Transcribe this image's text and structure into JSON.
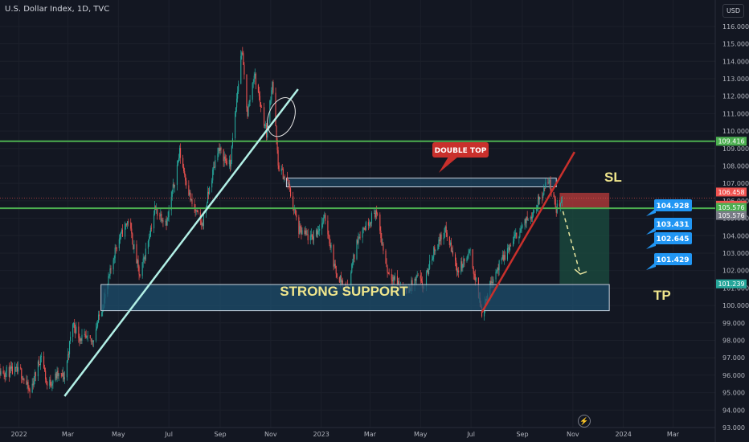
{
  "header": {
    "title": "U.S. Dollar Index, 1D, TVC",
    "currency": "USD"
  },
  "icons": {
    "flash": "lightning-icon"
  },
  "colors": {
    "bg": "#131722",
    "up": "#26a69a",
    "down": "#ef5350",
    "green_line": "#4caf50",
    "support_fill": "#1e4f6e",
    "trend": "#b2f0e6",
    "red_trend": "#c9302c",
    "label_blue": "#2196f3",
    "sl_red": "#b23a3a",
    "target_green": "#1b4d40"
  },
  "chart_data": {
    "type": "candlestick",
    "title": "U.S. Dollar Index, 1D, TVC",
    "xlabel": "",
    "ylabel": "USD",
    "ylim": [
      93,
      116.5
    ],
    "x_range": [
      "2022-01-01",
      "2024-03-31"
    ],
    "x_ticks": [
      {
        "label": "2022",
        "date": "2022-01-01"
      },
      {
        "label": "Mar",
        "date": "2022-03-01"
      },
      {
        "label": "May",
        "date": "2022-05-01"
      },
      {
        "label": "Jul",
        "date": "2022-07-01"
      },
      {
        "label": "Sep",
        "date": "2022-09-01"
      },
      {
        "label": "Nov",
        "date": "2022-11-01"
      },
      {
        "label": "2023",
        "date": "2023-01-01"
      },
      {
        "label": "Mar",
        "date": "2023-03-01"
      },
      {
        "label": "May",
        "date": "2023-05-01"
      },
      {
        "label": "Jul",
        "date": "2023-07-01"
      },
      {
        "label": "Sep",
        "date": "2023-09-01"
      },
      {
        "label": "Nov",
        "date": "2023-11-01"
      },
      {
        "label": "2024",
        "date": "2024-01-01"
      },
      {
        "label": "Mar",
        "date": "2024-03-01"
      }
    ],
    "y_ticks": [
      "93.000",
      "94.000",
      "95.000",
      "96.000",
      "97.000",
      "98.000",
      "99.000",
      "100.000",
      "101.000",
      "102.000",
      "103.000",
      "104.000",
      "105.000",
      "106.000",
      "107.000",
      "108.000",
      "109.000",
      "110.000",
      "111.000",
      "112.000",
      "113.000",
      "114.000",
      "115.000",
      "116.000"
    ],
    "price_path": [
      [
        "2021-12-01",
        96.2
      ],
      [
        "2022-01-03",
        96.2
      ],
      [
        "2022-01-14",
        95.0
      ],
      [
        "2022-01-28",
        97.2
      ],
      [
        "2022-02-04",
        95.4
      ],
      [
        "2022-02-16",
        96.0
      ],
      [
        "2022-02-25",
        95.9
      ],
      [
        "2022-03-07",
        99.0
      ],
      [
        "2022-03-15",
        98.2
      ],
      [
        "2022-03-30",
        97.9
      ],
      [
        "2022-04-15",
        100.5
      ],
      [
        "2022-04-28",
        103.4
      ],
      [
        "2022-05-13",
        104.9
      ],
      [
        "2022-05-27",
        101.6
      ],
      [
        "2022-06-14",
        105.5
      ],
      [
        "2022-06-29",
        104.8
      ],
      [
        "2022-07-14",
        108.8
      ],
      [
        "2022-07-28",
        105.9
      ],
      [
        "2022-08-10",
        104.6
      ],
      [
        "2022-08-29",
        109.0
      ],
      [
        "2022-09-13",
        108.0
      ],
      [
        "2022-09-27",
        114.7
      ],
      [
        "2022-10-04",
        111.0
      ],
      [
        "2022-10-12",
        113.3
      ],
      [
        "2022-10-27",
        109.9
      ],
      [
        "2022-11-03",
        112.9
      ],
      [
        "2022-11-10",
        108.0
      ],
      [
        "2022-11-22",
        107.0
      ],
      [
        "2022-12-05",
        104.3
      ],
      [
        "2022-12-20",
        103.8
      ],
      [
        "2023-01-06",
        105.0
      ],
      [
        "2023-01-18",
        102.0
      ],
      [
        "2023-02-01",
        100.9
      ],
      [
        "2023-02-15",
        104.0
      ],
      [
        "2023-03-08",
        105.4
      ],
      [
        "2023-03-22",
        102.0
      ],
      [
        "2023-04-13",
        100.8
      ],
      [
        "2023-04-28",
        101.6
      ],
      [
        "2023-05-04",
        101.0
      ],
      [
        "2023-05-18",
        103.3
      ],
      [
        "2023-05-31",
        104.3
      ],
      [
        "2023-06-15",
        102.0
      ],
      [
        "2023-06-30",
        103.0
      ],
      [
        "2023-07-14",
        99.6
      ],
      [
        "2023-07-27",
        101.6
      ],
      [
        "2023-08-22",
        103.8
      ],
      [
        "2023-09-14",
        105.4
      ],
      [
        "2023-10-03",
        107.2
      ],
      [
        "2023-10-12",
        105.5
      ],
      [
        "2023-10-19",
        106.2
      ]
    ],
    "price_levels": [
      {
        "label": "109.416",
        "value": 109.416,
        "color": "#4caf50"
      },
      {
        "label": "106.458",
        "value": 106.458,
        "color": "#ef5350"
      },
      {
        "label": "106.163",
        "value": 106.163,
        "color": "#ef5350"
      },
      {
        "label": "105.576",
        "value": 105.576,
        "color": "#4caf50"
      },
      {
        "label": "105.576",
        "value": 105.576,
        "color": "#787b86"
      },
      {
        "label": "101.239",
        "value": 101.239,
        "color": "#26a69a"
      }
    ],
    "target_labels": [
      {
        "label": "104.928",
        "value": 104.928
      },
      {
        "label": "103.431",
        "value": 103.431
      },
      {
        "label": "102.645",
        "value": 102.645
      },
      {
        "label": "101.429",
        "value": 101.429
      }
    ],
    "annotations": {
      "double_top": "DOUBLE TOP",
      "support": "STRONG SUPPORT",
      "sl": "SL",
      "tp": "TP"
    },
    "zones": {
      "support": {
        "from": "2022-04-10",
        "to": "2023-12-15",
        "low": 99.7,
        "high": 101.2
      },
      "double_top": {
        "from": "2022-11-20",
        "to": "2023-10-12",
        "low": 106.8,
        "high": 107.3
      },
      "stop_loss": {
        "from": "2023-10-16",
        "to": "2023-12-15",
        "low": 105.576,
        "high": 106.458
      },
      "take_profit": {
        "from": "2023-10-16",
        "to": "2023-12-15",
        "low": 101.239,
        "high": 105.576
      }
    },
    "horizontal_lines": [
      109.416,
      105.576
    ],
    "trend_lines": [
      {
        "from": [
          "2022-02-25",
          94.8
        ],
        "to": [
          "2022-12-04",
          112.4
        ],
        "color": "#b2f0e6"
      },
      {
        "from": [
          "2023-07-14",
          99.6
        ],
        "to": [
          "2023-11-03",
          108.8
        ],
        "color": "#c9302c"
      }
    ],
    "projection_arrow": {
      "from": [
        "2023-10-20",
        105.4
      ],
      "to": [
        "2023-11-10",
        101.8
      ]
    },
    "ellipse": {
      "date": "2022-11-08",
      "value": 110.8
    }
  }
}
